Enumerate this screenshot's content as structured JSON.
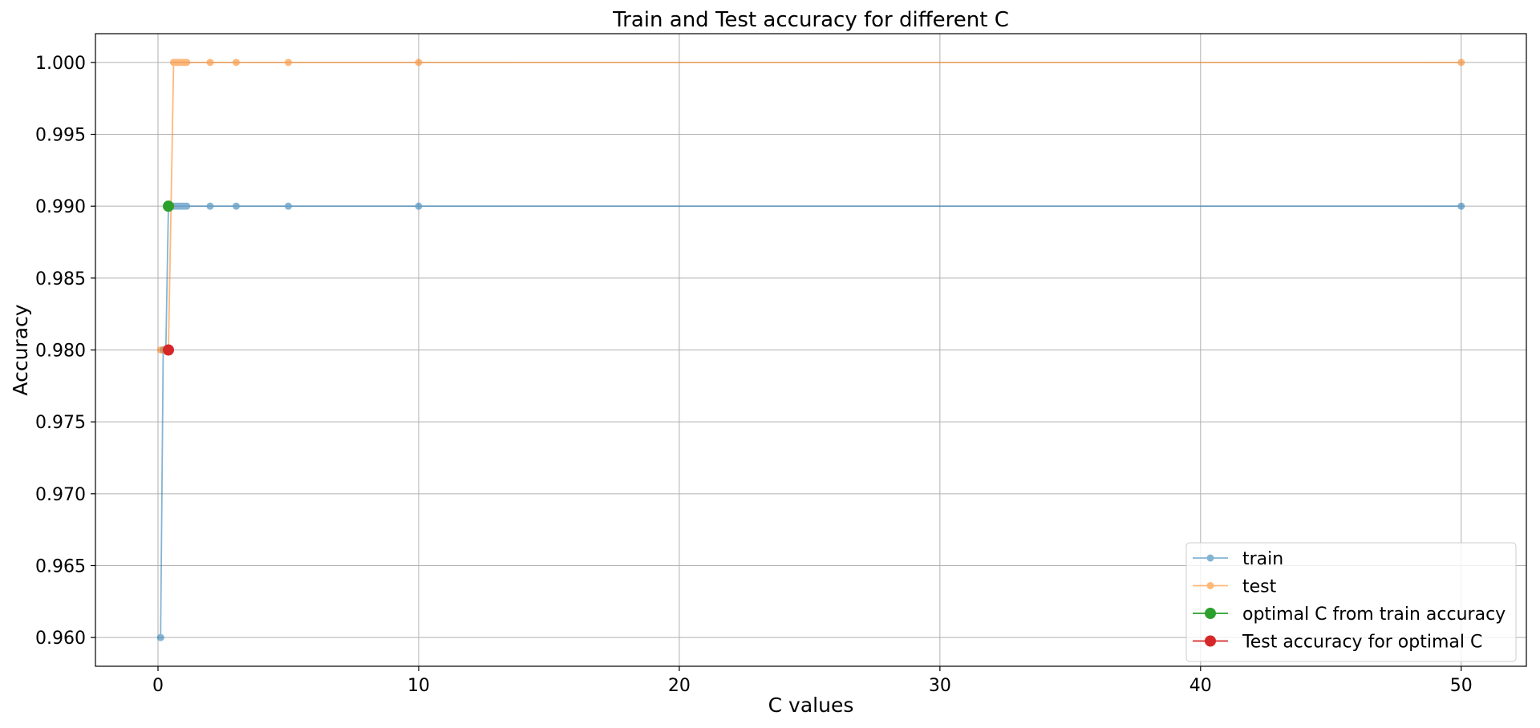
{
  "chart_data": {
    "type": "line",
    "title": "Train and Test accuracy for different C",
    "xlabel": "C values",
    "ylabel": "Accuracy",
    "xlim": [
      -2.4,
      52.5
    ],
    "ylim": [
      0.958,
      1.002
    ],
    "grid": true,
    "legend_position": "bottom-right",
    "x_ticks": [
      0,
      10,
      20,
      30,
      40,
      50
    ],
    "x_tick_labels": [
      "0",
      "10",
      "20",
      "30",
      "40",
      "50"
    ],
    "y_ticks": [
      0.96,
      0.965,
      0.97,
      0.975,
      0.98,
      0.985,
      0.99,
      0.995,
      1.0
    ],
    "y_tick_labels": [
      "0.960",
      "0.965",
      "0.970",
      "0.975",
      "0.980",
      "0.985",
      "0.990",
      "0.995",
      "1.000"
    ],
    "series": [
      {
        "name": "train",
        "color": "#1f77b4",
        "x": [
          0.1,
          0.2,
          0.3,
          0.4,
          0.5,
          0.6,
          0.7,
          0.8,
          0.9,
          1.0,
          1.1,
          2,
          3,
          5,
          10,
          50
        ],
        "y": [
          0.96,
          0.98,
          0.98,
          0.99,
          0.99,
          0.99,
          0.99,
          0.99,
          0.99,
          0.99,
          0.99,
          0.99,
          0.99,
          0.99,
          0.99,
          0.99
        ]
      },
      {
        "name": "test",
        "color": "#ff7f0e",
        "x": [
          0.1,
          0.2,
          0.3,
          0.4,
          0.5,
          0.6,
          0.7,
          0.8,
          0.9,
          1.0,
          1.1,
          2,
          3,
          5,
          10,
          50
        ],
        "y": [
          0.98,
          0.98,
          0.98,
          0.98,
          0.99,
          1.0,
          1.0,
          1.0,
          1.0,
          1.0,
          1.0,
          1.0,
          1.0,
          1.0,
          1.0,
          1.0
        ]
      }
    ],
    "highlight_points": [
      {
        "name": "optimal C from train accuracy",
        "color": "#2ca02c",
        "x": 0.4,
        "y": 0.99
      },
      {
        "name": "Test accuracy for optimal C",
        "color": "#d62728",
        "x": 0.4,
        "y": 0.98
      }
    ]
  }
}
